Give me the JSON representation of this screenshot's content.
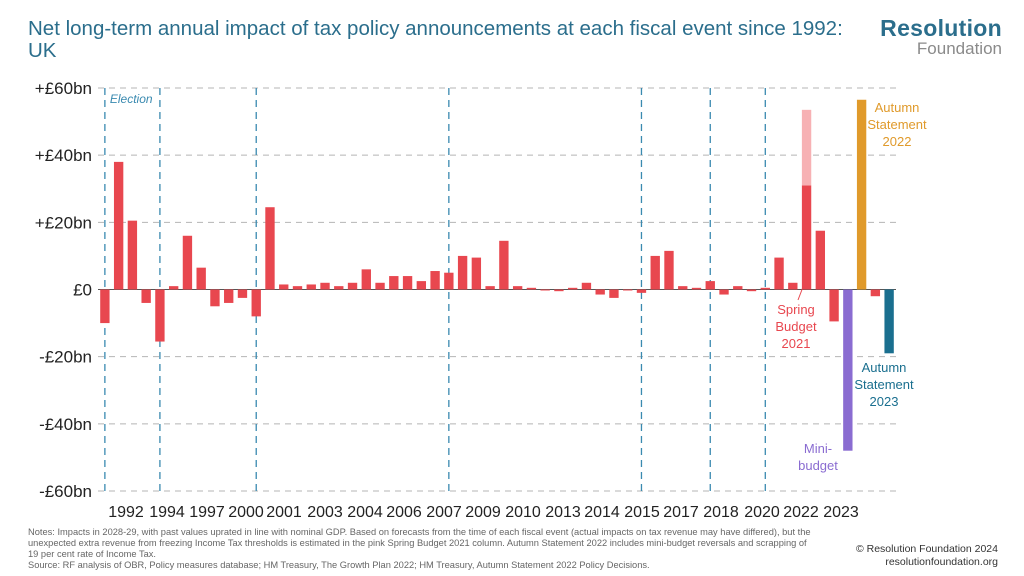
{
  "header": {
    "title": "Net long-term annual impact of tax policy announcements at each fiscal event since 1992: UK"
  },
  "logo": {
    "line1": "Resolution",
    "line2": "Foundation"
  },
  "footer": {
    "notes": "Notes: Impacts in 2028-29, with past values uprated in line with nominal GDP. Based on forecasts from the time of each fiscal event (actual impacts on tax revenue may have differed), but the unexpected extra revenue from freezing Income Tax thresholds is estimated in the pink Spring Budget 2021 column. Autumn Statement 2022 includes mini-budget reversals and scrapping of 19 per cent rate of Income Tax.",
    "source": "Source: RF analysis of OBR, Policy measures database; HM Treasury, The Growth Plan 2022; HM Treasury, Autumn Statement 2022 Policy Decisions.",
    "copyright": "© Resolution Foundation 2024",
    "website": "resolutionfoundation.org"
  },
  "colors": {
    "default_bar": "#e8474f",
    "spring_budget_extra": "#f7b1b4",
    "autumn_2022": "#e09a2b",
    "mini_budget": "#8a6cd1",
    "autumn_2023": "#1a6f8f",
    "election_line": "#3a8ab0",
    "grid": "#b5b5b5",
    "title": "#2b6e8c"
  },
  "chart_data": {
    "type": "bar",
    "ylim": [
      -60,
      60
    ],
    "y_ticks": [
      {
        "value": 60,
        "label": "+£60bn"
      },
      {
        "value": 40,
        "label": "+£40bn"
      },
      {
        "value": 20,
        "label": "+£20bn"
      },
      {
        "value": 0,
        "label": "£0"
      },
      {
        "value": -20,
        "label": "-£20bn"
      },
      {
        "value": -40,
        "label": "-£40bn"
      },
      {
        "value": -60,
        "label": "-£60bn"
      }
    ],
    "x_tick_labels": [
      "1992",
      "1994",
      "1997",
      "2000",
      "2001",
      "2003",
      "2004",
      "2006",
      "2007",
      "2009",
      "2010",
      "2013",
      "2014",
      "2015",
      "2017",
      "2018",
      "2020",
      "2022",
      "2023"
    ],
    "election_label": "Election",
    "grid": true,
    "values": [
      -10,
      38,
      20.5,
      -4,
      -15.5,
      1,
      16,
      6.5,
      -5,
      -4,
      -2.5,
      -8,
      24.5,
      1.5,
      1,
      1.5,
      2,
      1,
      2,
      6,
      2,
      4,
      4,
      2.5,
      5.5,
      5,
      10,
      9.5,
      1,
      14.5,
      1,
      0.5,
      0,
      -0.5,
      0.5,
      2,
      -1.5,
      -2.5,
      0,
      -1,
      10,
      11.5,
      1,
      0.5,
      2.5,
      -1.5,
      1,
      -0.5,
      0.5,
      9.5,
      2,
      31,
      17.5,
      -9.5,
      -48,
      56.5,
      -2,
      -19
    ],
    "spring_budget_extra": {
      "bar_index": 51,
      "base": 31,
      "top": 53.5
    },
    "highlighted_bars": [
      {
        "bar_index": 54,
        "label": "Mini-budget",
        "color_key": "mini_budget"
      },
      {
        "bar_index": 55,
        "label": "Autumn Statement 2022",
        "color_key": "autumn_2022"
      },
      {
        "bar_index": 57,
        "label": "Autumn Statement 2023",
        "color_key": "autumn_2023"
      },
      {
        "bar_index": 51,
        "label": "Spring Budget 2021",
        "color_key": "default_bar"
      }
    ],
    "annotations": {
      "autumn_2022": [
        "Autumn",
        "Statement",
        "2022"
      ],
      "spring_2021": [
        "Spring",
        "Budget",
        "2021"
      ],
      "autumn_2023": [
        "Autumn",
        "Statement",
        "2023"
      ],
      "mini_budget": [
        "Mini-",
        "budget"
      ]
    }
  }
}
